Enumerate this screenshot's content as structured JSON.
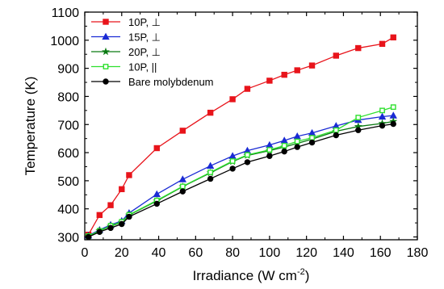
{
  "chart_data": {
    "type": "line",
    "title": "",
    "xlabel": "Irradiance (W cm",
    "xlabel_sup": "-2",
    "xlabel_tail": ")",
    "ylabel": "Temperature (K)",
    "xlim": [
      0,
      180
    ],
    "ylim": [
      290,
      1100
    ],
    "xticks": [
      0,
      20,
      40,
      60,
      80,
      100,
      120,
      140,
      160,
      180
    ],
    "yticks": [
      300,
      400,
      500,
      600,
      700,
      800,
      900,
      1000,
      1100
    ],
    "grid": false,
    "legend_position": "top-left",
    "series": [
      {
        "name": "10P, ⊥",
        "color": "#e8141b",
        "marker": "square",
        "x": [
          2,
          8,
          14,
          20,
          24,
          39,
          53,
          68,
          80,
          88,
          100,
          108,
          115,
          123,
          136,
          148,
          161,
          167
        ],
        "y": [
          308,
          378,
          413,
          470,
          520,
          616,
          678,
          742,
          790,
          827,
          856,
          877,
          893,
          910,
          945,
          972,
          987,
          1010
        ]
      },
      {
        "name": "15P, ⊥",
        "color": "#1a2bd4",
        "marker": "triangle",
        "x": [
          2,
          8,
          14,
          20,
          24,
          39,
          53,
          68,
          80,
          88,
          100,
          108,
          115,
          123,
          136,
          148,
          161,
          167
        ],
        "y": [
          305,
          325,
          343,
          357,
          385,
          452,
          505,
          553,
          588,
          607,
          627,
          643,
          658,
          670,
          695,
          716,
          728,
          732
        ]
      },
      {
        "name": "20P, ⊥",
        "color": "#0a7a12",
        "marker": "star",
        "x": [
          2,
          8,
          14,
          20,
          24,
          39,
          53,
          68,
          80,
          88,
          100,
          108,
          115,
          123,
          136,
          148,
          161,
          167
        ],
        "y": [
          303,
          322,
          338,
          352,
          378,
          428,
          479,
          528,
          568,
          590,
          607,
          620,
          633,
          648,
          676,
          693,
          704,
          711
        ]
      },
      {
        "name": "10P, ||",
        "color": "#2ee02e",
        "marker": "open-square",
        "x": [
          2,
          8,
          14,
          20,
          24,
          39,
          53,
          68,
          80,
          88,
          100,
          108,
          115,
          123,
          136,
          148,
          161,
          167
        ],
        "y": [
          303,
          322,
          340,
          354,
          379,
          430,
          480,
          530,
          570,
          592,
          610,
          625,
          640,
          653,
          680,
          725,
          750,
          762
        ]
      },
      {
        "name": "Bare molybdenum",
        "color": "#000000",
        "marker": "circle",
        "x": [
          2,
          8,
          14,
          20,
          24,
          39,
          53,
          68,
          80,
          88,
          100,
          108,
          115,
          123,
          136,
          148,
          161,
          167
        ],
        "y": [
          300,
          318,
          332,
          346,
          372,
          418,
          462,
          507,
          543,
          566,
          588,
          604,
          620,
          636,
          662,
          680,
          696,
          702
        ]
      }
    ]
  }
}
